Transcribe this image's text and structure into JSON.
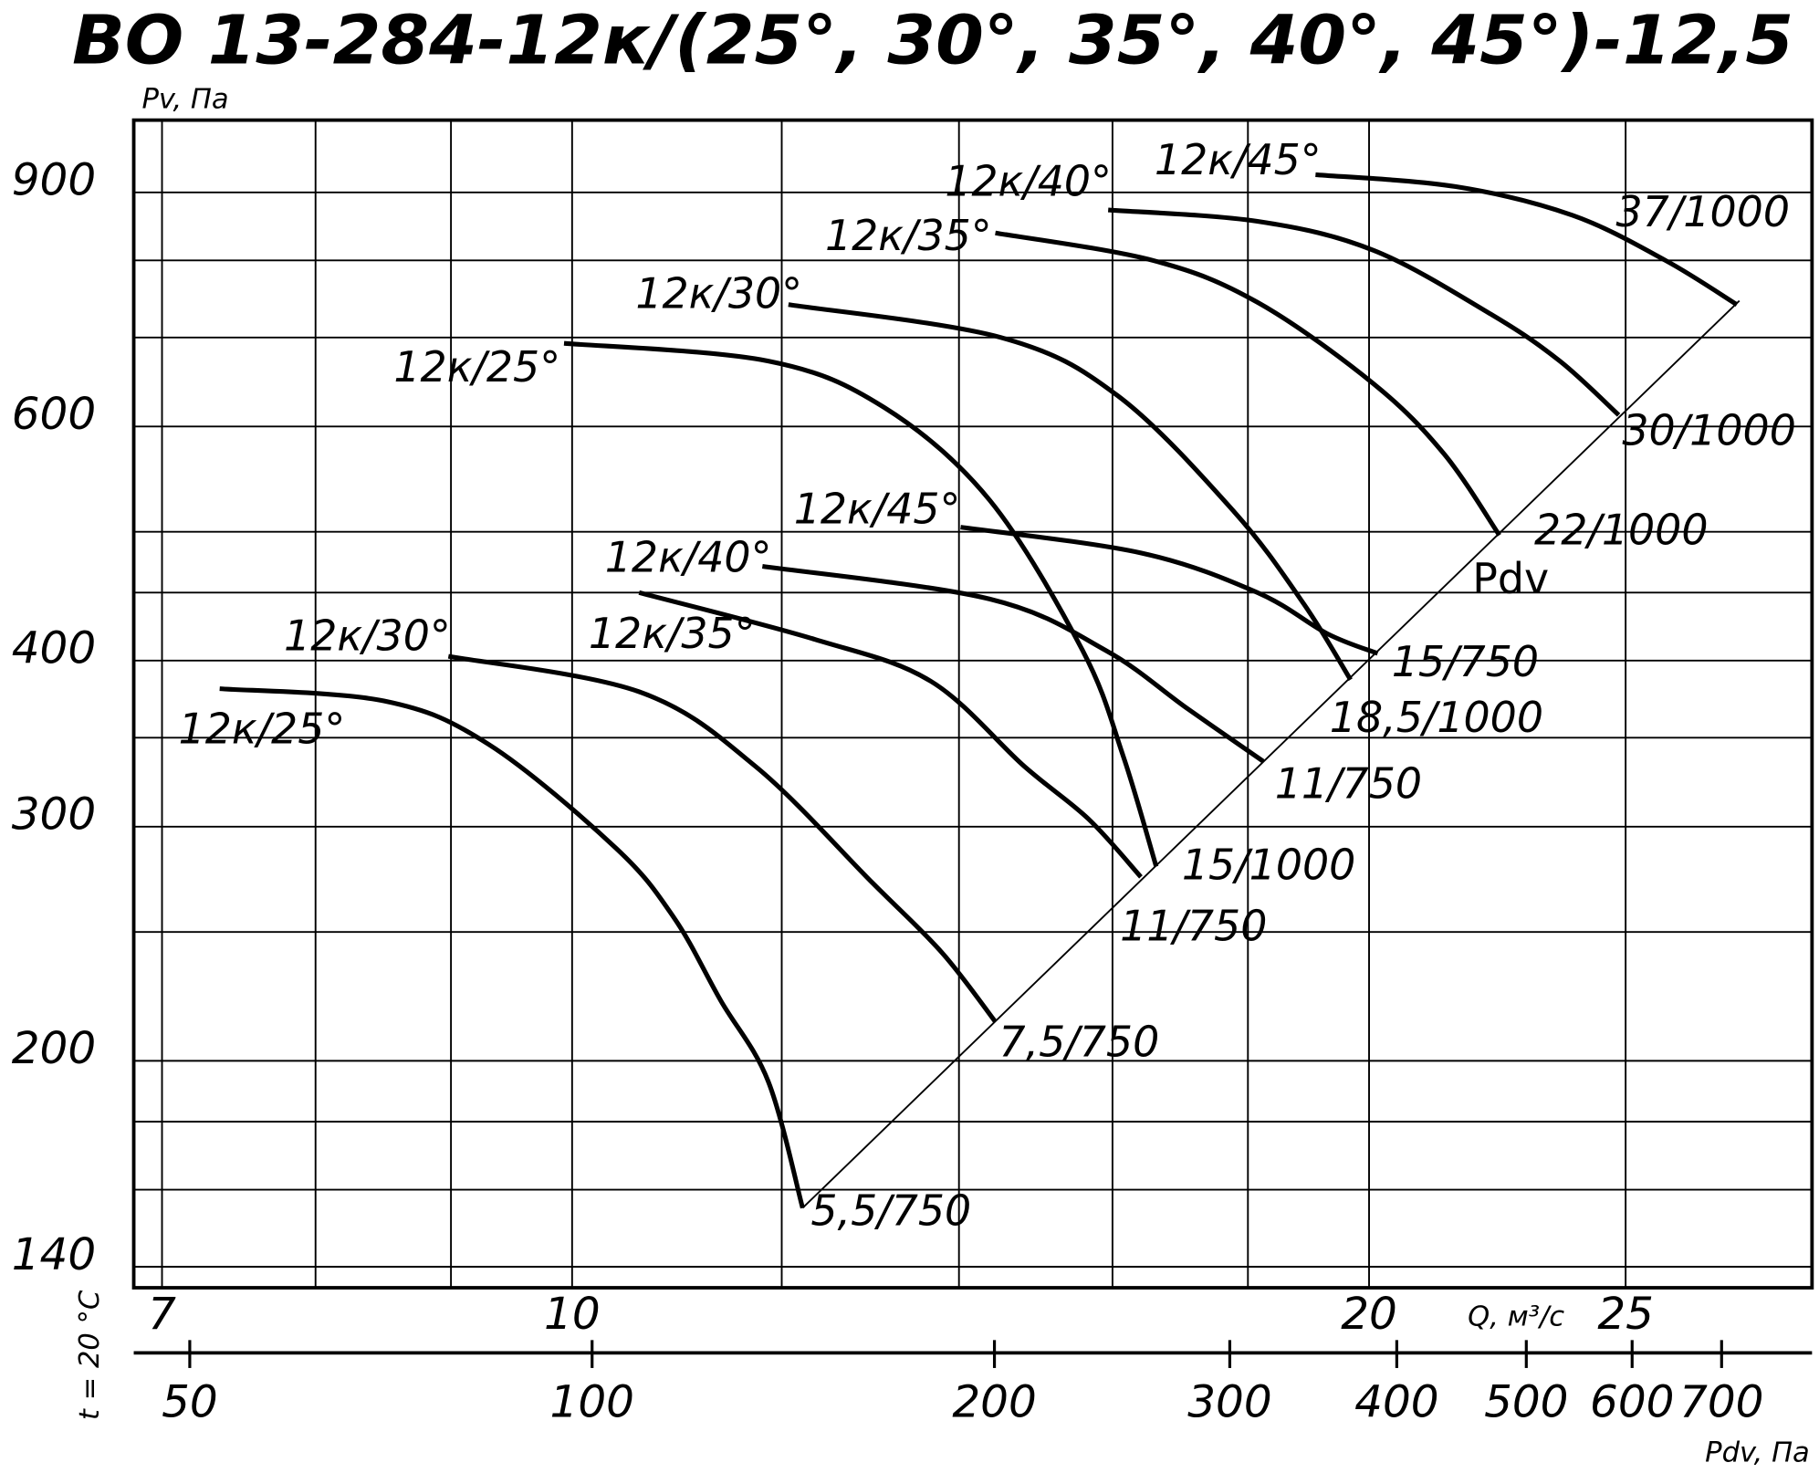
{
  "chart_data": {
    "type": "line",
    "title": "ВО 13-284-12к/(25°, 30°, 35°, 40°, 45°)-12,5",
    "y_label": "Pv, Па",
    "x_label": "Q, м³/с",
    "x2_label": "Pdv, Па",
    "note": "t = 20 °C",
    "xscale": "log",
    "yscale": "log",
    "x2scale": "log",
    "grid": true,
    "color": "#000000",
    "xlim": [
      6.83,
      29.4
    ],
    "xticks": [
      7,
      10,
      20,
      25
    ],
    "xgrid_minor": [
      8,
      9,
      12,
      14,
      16,
      18
    ],
    "ylim": [
      135,
      1020
    ],
    "yticks": [
      140,
      200,
      300,
      400,
      600,
      900
    ],
    "ygrid_minor": [
      160,
      180,
      250,
      350,
      450,
      500,
      700,
      800
    ],
    "x2lim": [
      45.4,
      818
    ],
    "x2ticks": [
      50,
      100,
      200,
      300,
      400,
      500,
      600,
      700
    ],
    "series": [
      {
        "name": "12к/25°",
        "end_label": "5,5/750",
        "x": [
          7.36,
          8.49,
          9.3,
          10.39,
          10.93,
          11.38,
          11.86,
          12.22
        ],
        "values": [
          381,
          373,
          346,
          289,
          256,
          222,
          193,
          155
        ]
      },
      {
        "name": "12к/30°",
        "end_label": "7,5/750",
        "x": [
          8.98,
          10.6,
          11.73,
          12.99,
          13.8,
          14.45
        ],
        "values": [
          403,
          379,
          333,
          272,
          241,
          214
        ]
      },
      {
        "name": "12к/35°",
        "end_label": "11/750",
        "x": [
          10.6,
          12.35,
          13.66,
          14.82,
          15.67,
          16.4
        ],
        "values": [
          450,
          415,
          386,
          333,
          304,
          275
        ]
      },
      {
        "name": "12к/40°",
        "end_label": "11/750",
        "x": [
          11.8,
          14.38,
          15.91,
          17.08,
          18.24
        ],
        "values": [
          471,
          445,
          407,
          368,
          336
        ]
      },
      {
        "name": "12к/45°",
        "end_label": "15/750",
        "x": [
          14.02,
          16.4,
          18.15,
          19.29,
          20.15
        ],
        "values": [
          504,
          482,
          450,
          419,
          405
        ]
      },
      {
        "name": "12к/25°",
        "end_label": "15/1000",
        "x": [
          9.93,
          11.86,
          13.12,
          14.38,
          15.59,
          16.15,
          16.62
        ],
        "values": [
          693,
          672,
          620,
          528,
          407,
          339,
          280
        ]
      },
      {
        "name": "12к/30°",
        "end_label": "18,5/1000",
        "x": [
          12.07,
          14.52,
          16.07,
          17.78,
          18.9,
          19.68
        ],
        "values": [
          741,
          700,
          633,
          518,
          441,
          387
        ]
      },
      {
        "name": "12к/35°",
        "end_label": "22/1000",
        "x": [
          14.45,
          16.57,
          18.15,
          20.08,
          21.35,
          22.4
        ],
        "values": [
          839,
          800,
          744,
          646,
          572,
          497
        ]
      },
      {
        "name": "12к/40°",
        "end_label": "30/1000",
        "x": [
          15.94,
          18.15,
          20.08,
          22.23,
          23.61,
          24.85
        ],
        "values": [
          873,
          856,
          814,
          729,
          672,
          612
        ]
      },
      {
        "name": "12к/45°",
        "end_label": "37/1000",
        "x": [
          19.09,
          21.57,
          23.87,
          25.88,
          27.54
        ],
        "values": [
          928,
          909,
          865,
          800,
          741
        ]
      }
    ],
    "pdv_line": {
      "name": "Pdv",
      "x": [
        12.22,
        27.6
      ],
      "values": [
        155,
        746
      ]
    }
  }
}
